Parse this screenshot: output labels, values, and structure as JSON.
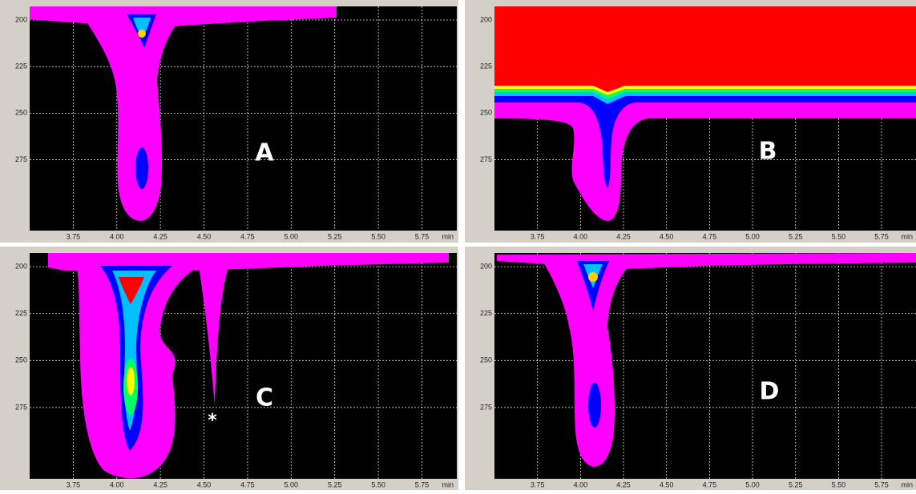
{
  "chart_data": [
    {
      "type": "contour",
      "label": "A",
      "xlabel": "min",
      "xlim": [
        3.5,
        5.95
      ],
      "ylim": [
        192.7,
        313
      ],
      "xticks": [
        3.75,
        {
          "value": 4,
          "label": "4.00"
        },
        4.25,
        {
          "value": 4.5,
          "label": "4.50"
        },
        4.75,
        {
          "value": 5,
          "label": "5.00"
        },
        5.25,
        {
          "value": 5.5,
          "label": "5.50"
        },
        5.75
      ],
      "yticks": [
        200,
        225,
        250,
        275
      ]
    },
    {
      "type": "contour",
      "label": "B",
      "xlabel": "min",
      "xlim": [
        3.5,
        5.95
      ],
      "ylim": [
        192.7,
        313
      ],
      "xticks": [
        3.75,
        {
          "value": 4,
          "label": "4.00"
        },
        4.25,
        {
          "value": 4.5,
          "label": "4.50"
        },
        4.75,
        {
          "value": 5,
          "label": "5.00"
        },
        5.25,
        {
          "value": 5.5,
          "label": "5.50"
        },
        5.75
      ],
      "yticks": [
        200,
        225,
        250,
        275
      ]
    },
    {
      "type": "contour",
      "label": "C",
      "annotation": "*",
      "xlabel": "min",
      "xlim": [
        3.5,
        5.95
      ],
      "ylim": [
        192.7,
        313
      ],
      "xticks": [
        3.75,
        {
          "value": 4,
          "label": "4.00"
        },
        4.25,
        {
          "value": 4.5,
          "label": "4.50"
        },
        4.75,
        {
          "value": 5,
          "label": "5.00"
        },
        5.25,
        {
          "value": 5.5,
          "label": "5.50"
        },
        5.75
      ],
      "yticks": [
        200,
        225,
        250,
        275
      ]
    },
    {
      "type": "contour",
      "label": "D",
      "xlabel": "min",
      "xlim": [
        3.5,
        5.95
      ],
      "ylim": [
        192.7,
        313
      ],
      "xticks": [
        3.75,
        {
          "value": 4,
          "label": "4.00"
        },
        4.25,
        {
          "value": 4.5,
          "label": "4.50"
        },
        4.75,
        {
          "value": 5,
          "label": "5.00"
        },
        5.25,
        {
          "value": 5.5,
          "label": "5.50"
        },
        5.75
      ],
      "yticks": [
        200,
        225,
        250,
        275
      ]
    }
  ]
}
